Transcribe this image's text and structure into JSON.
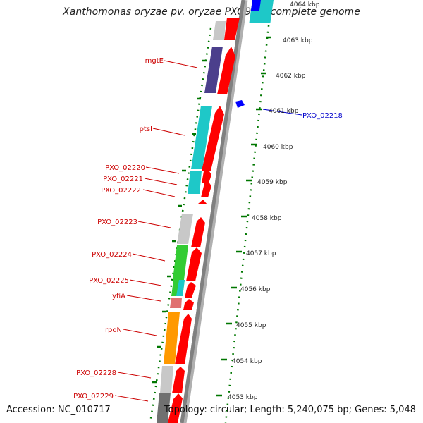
{
  "title": "Xanthomonas oryzae pv. oryzae PXO99A, complete genome",
  "accession": "Accession: NC_010717",
  "topology": "Topology: circular; Length: 5,240,075 bp; Genes: 5,048",
  "colors": {
    "gene_label": "#cc0000",
    "highlight_label": "#0000cc",
    "tick": "#007700",
    "arrow": "#ff0000",
    "backbone": "#808080"
  },
  "scale_ticks": [
    {
      "label": "4064 kbp",
      "kbp": 4064
    },
    {
      "label": "4063 kbp",
      "kbp": 4063
    },
    {
      "label": "4062 kbp",
      "kbp": 4062
    },
    {
      "label": "4061 kbp",
      "kbp": 4061
    },
    {
      "label": "4060 kbp",
      "kbp": 4060
    },
    {
      "label": "4059 kbp",
      "kbp": 4059
    },
    {
      "label": "4058 kbp",
      "kbp": 4058
    },
    {
      "label": "4057 kbp",
      "kbp": 4057
    },
    {
      "label": "4056 kbp",
      "kbp": 4056
    },
    {
      "label": "4055 kbp",
      "kbp": 4055
    },
    {
      "label": "4054 kbp",
      "kbp": 4054
    },
    {
      "label": "4053 kbp",
      "kbp": 4053
    }
  ],
  "genes": [
    {
      "name": "",
      "color": "#c8c8c8"
    },
    {
      "name": "mgtE",
      "color": "#4b3f8c"
    },
    {
      "name": "ptsI",
      "color": "#1ec8c8"
    },
    {
      "name": "PXO_02220",
      "color": "#1ec8c8"
    },
    {
      "name": "PXO_02221",
      "color": "#1ec8c8"
    },
    {
      "name": "PXO_02222",
      "color": "#ffffff"
    },
    {
      "name": "PXO_02223",
      "color": "#c8c8c8"
    },
    {
      "name": "PXO_02224",
      "color": "#33cc33"
    },
    {
      "name": "PXO_02225",
      "color": "#33cc33"
    },
    {
      "name": "yfiA",
      "color": "#e07070"
    },
    {
      "name": "rpoN",
      "color": "#ff9900"
    },
    {
      "name": "PXO_02228",
      "color": "#c8c8c8"
    },
    {
      "name": "PXO_02229",
      "color": "#707070"
    }
  ],
  "highlight": {
    "name": "PXO_02218",
    "color": "#0000ff"
  }
}
